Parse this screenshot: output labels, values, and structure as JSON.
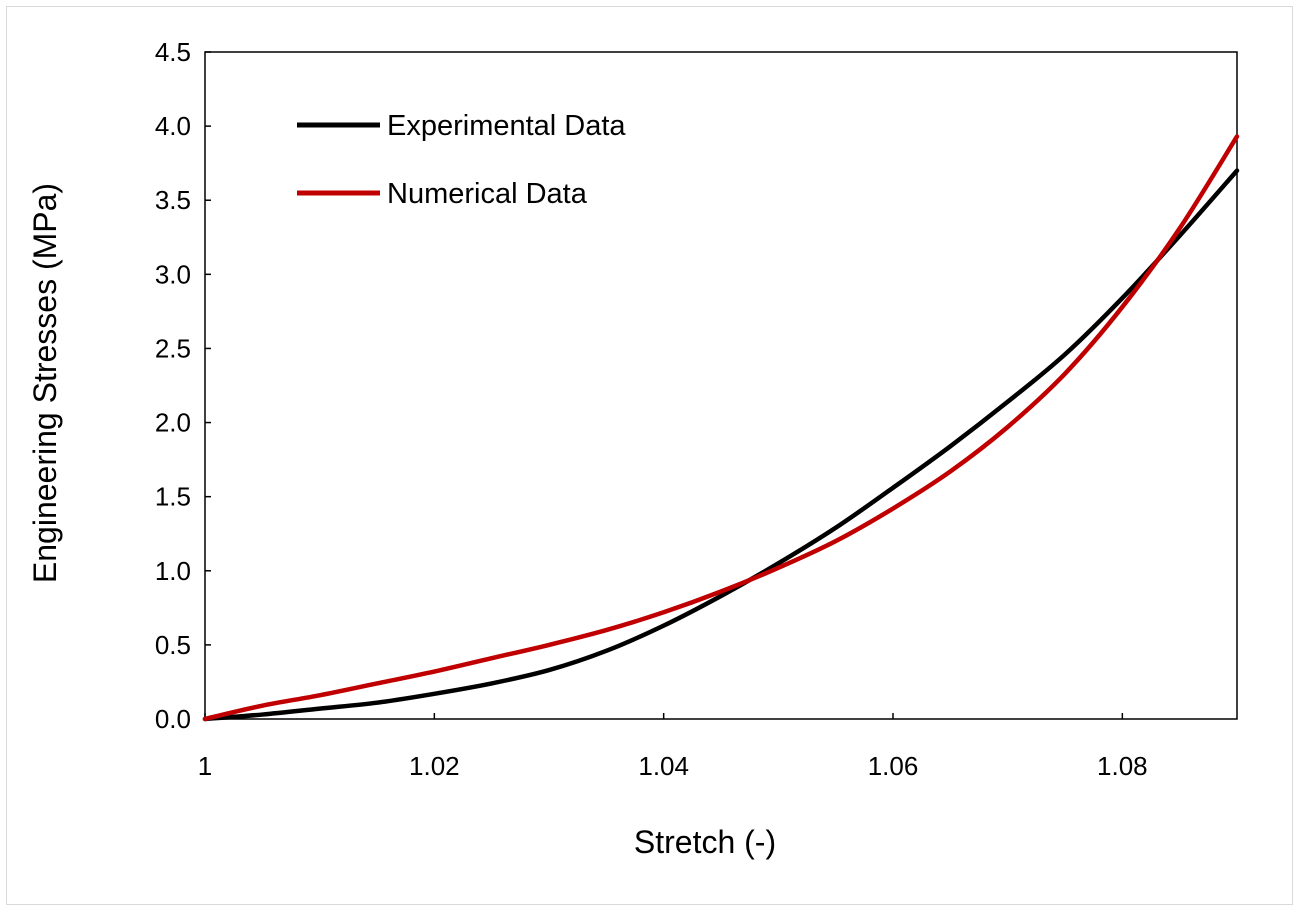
{
  "chart_data": {
    "type": "line",
    "title": "",
    "xlabel": "Stretch (-)",
    "ylabel": "Engineering Stresses (MPa)",
    "xlim": [
      1.0,
      1.09
    ],
    "ylim": [
      0.0,
      4.5
    ],
    "xticks": [
      1.0,
      1.02,
      1.04,
      1.06,
      1.08
    ],
    "xtick_labels": [
      "1",
      "1.02",
      "1.04",
      "1.06",
      "1.08"
    ],
    "yticks": [
      0.0,
      0.5,
      1.0,
      1.5,
      2.0,
      2.5,
      3.0,
      3.5,
      4.0,
      4.5
    ],
    "ytick_labels": [
      "0.0",
      "0.5",
      "1.0",
      "1.5",
      "2.0",
      "2.5",
      "3.0",
      "3.5",
      "4.0",
      "4.5"
    ],
    "grid": false,
    "legend_position": "top-left",
    "series": [
      {
        "name": "Experimental Data",
        "color": "#000000",
        "x": [
          1.0,
          1.005,
          1.01,
          1.015,
          1.02,
          1.025,
          1.03,
          1.035,
          1.04,
          1.045,
          1.05,
          1.055,
          1.06,
          1.065,
          1.07,
          1.075,
          1.08,
          1.085,
          1.09
        ],
        "y": [
          0.0,
          0.03,
          0.07,
          0.11,
          0.17,
          0.24,
          0.33,
          0.46,
          0.63,
          0.83,
          1.05,
          1.29,
          1.56,
          1.84,
          2.14,
          2.46,
          2.84,
          3.26,
          3.7
        ]
      },
      {
        "name": "Numerical Data",
        "color": "#c00000",
        "x": [
          1.0,
          1.005,
          1.01,
          1.015,
          1.02,
          1.025,
          1.03,
          1.035,
          1.04,
          1.045,
          1.05,
          1.055,
          1.06,
          1.065,
          1.07,
          1.075,
          1.08,
          1.085,
          1.09
        ],
        "y": [
          0.0,
          0.09,
          0.16,
          0.24,
          0.32,
          0.41,
          0.5,
          0.6,
          0.72,
          0.86,
          1.02,
          1.2,
          1.42,
          1.67,
          1.97,
          2.33,
          2.78,
          3.31,
          3.93
        ]
      }
    ]
  }
}
